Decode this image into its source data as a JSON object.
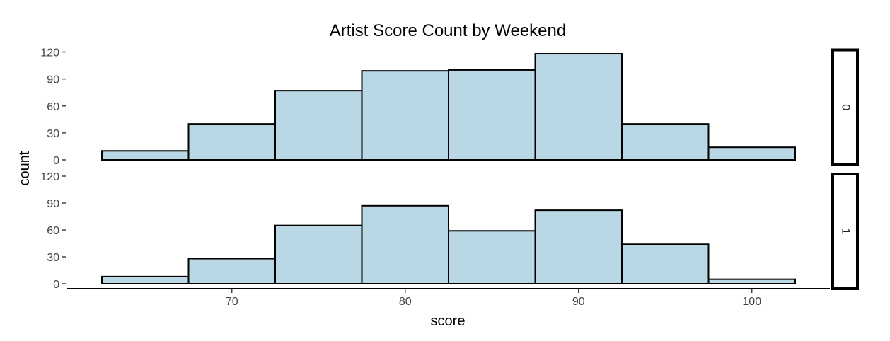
{
  "chart_data": {
    "type": "bar",
    "title": "Artist Score Count by Weekend",
    "xlabel": "score",
    "ylabel": "count",
    "xlim": [
      60.5,
      104.5
    ],
    "ylim": [
      0,
      120
    ],
    "x_ticks": [
      70,
      80,
      90,
      100
    ],
    "y_ticks": [
      0,
      30,
      60,
      90,
      120
    ],
    "bin_width": 5,
    "bin_centers": [
      65,
      70,
      75,
      80,
      85,
      90,
      95,
      100
    ],
    "fill_color": "#BAD7E5",
    "grid": false,
    "facets": [
      {
        "label": "0",
        "values": [
          10,
          40,
          77,
          99,
          100,
          118,
          40,
          14
        ]
      },
      {
        "label": "1",
        "values": [
          8,
          28,
          65,
          87,
          59,
          82,
          44,
          5
        ]
      }
    ]
  }
}
